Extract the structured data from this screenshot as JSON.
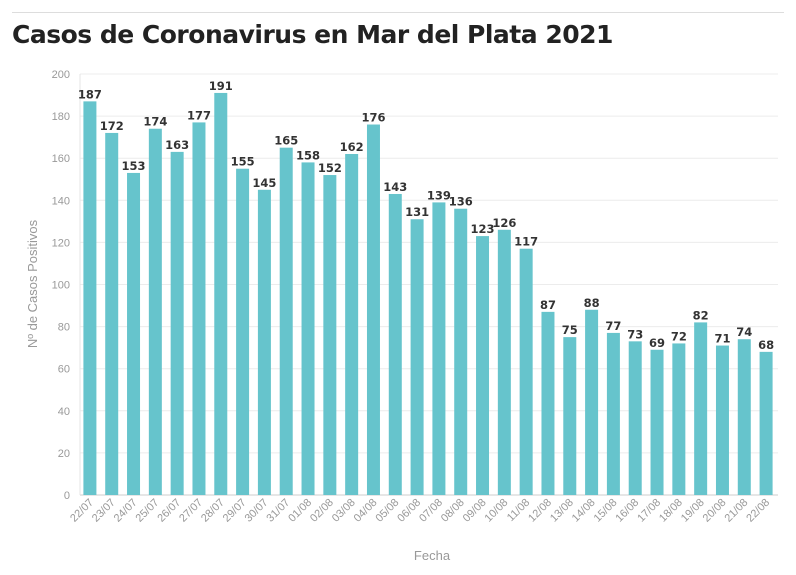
{
  "chart_data": {
    "type": "bar",
    "title": "Casos de Coronavirus en Mar del Plata 2021",
    "xlabel": "Fecha",
    "ylabel": "Nº de Casos Positivos",
    "ylim": [
      0,
      200
    ],
    "yticks": [
      0,
      20,
      40,
      60,
      80,
      100,
      120,
      140,
      160,
      180,
      200
    ],
    "grid": true,
    "bar_color": "#66c4cc",
    "categories": [
      "22/07",
      "23/07",
      "24/07",
      "25/07",
      "26/07",
      "27/07",
      "28/07",
      "29/07",
      "30/07",
      "31/07",
      "01/08",
      "02/08",
      "03/08",
      "04/08",
      "05/08",
      "06/08",
      "07/08",
      "08/08",
      "09/08",
      "10/08",
      "11/08",
      "12/08",
      "13/08",
      "14/08",
      "15/08",
      "16/08",
      "17/08",
      "18/08",
      "19/08",
      "20/08",
      "21/08",
      "22/08"
    ],
    "values": [
      187,
      172,
      153,
      174,
      163,
      177,
      191,
      155,
      145,
      165,
      158,
      152,
      162,
      176,
      143,
      131,
      139,
      136,
      123,
      126,
      117,
      87,
      75,
      88,
      77,
      73,
      69,
      72,
      82,
      71,
      74,
      68
    ]
  }
}
